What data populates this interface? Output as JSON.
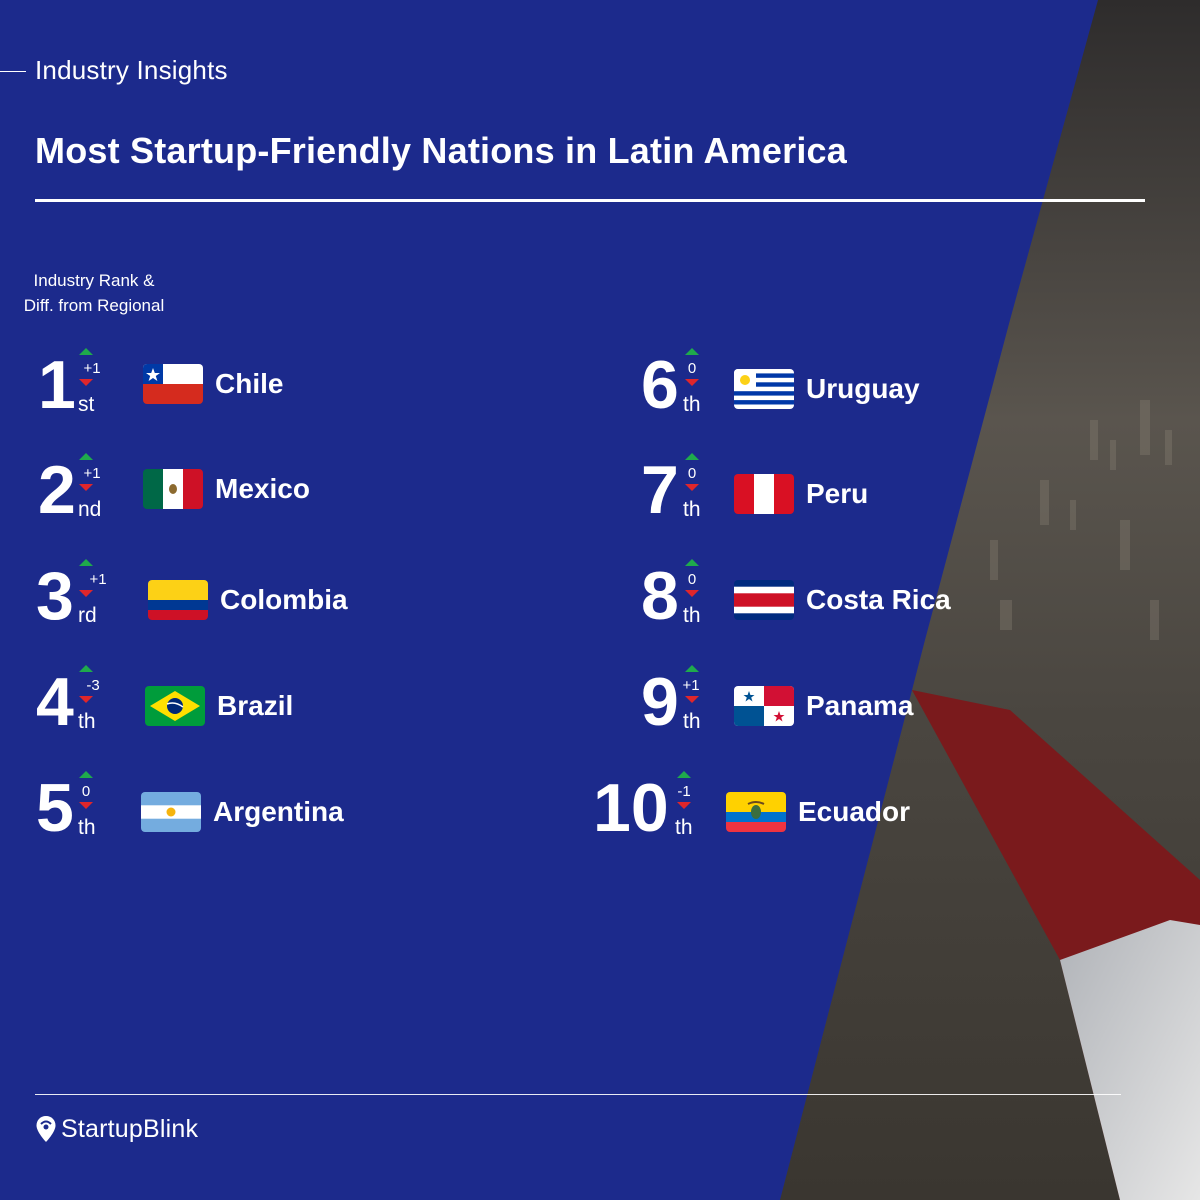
{
  "header": {
    "kicker": "Industry Insights",
    "title": "Most Startup-Friendly Nations in Latin America"
  },
  "legend": {
    "line1": "Industry Rank &",
    "line2": "Diff. from  Regional"
  },
  "colors": {
    "background": "#1c2a8c",
    "arrow_up": "#1faa4c",
    "arrow_down": "#e0262b"
  },
  "rankings": [
    {
      "rank": "1",
      "suffix": "st",
      "diff": "+1",
      "country": "Chile",
      "flag_icon": "chile-flag-icon"
    },
    {
      "rank": "2",
      "suffix": "nd",
      "diff": "+1",
      "country": "Mexico",
      "flag_icon": "mexico-flag-icon"
    },
    {
      "rank": "3",
      "suffix": "rd",
      "diff": "+1",
      "country": "Colombia",
      "flag_icon": "colombia-flag-icon"
    },
    {
      "rank": "4",
      "suffix": "th",
      "diff": "-3",
      "country": "Brazil",
      "flag_icon": "brazil-flag-icon"
    },
    {
      "rank": "5",
      "suffix": "th",
      "diff": "0",
      "country": "Argentina",
      "flag_icon": "argentina-flag-icon"
    },
    {
      "rank": "6",
      "suffix": "th",
      "diff": "0",
      "country": "Uruguay",
      "flag_icon": "uruguay-flag-icon"
    },
    {
      "rank": "7",
      "suffix": "th",
      "diff": "0",
      "country": "Peru",
      "flag_icon": "peru-flag-icon"
    },
    {
      "rank": "8",
      "suffix": "th",
      "diff": "0",
      "country": "Costa Rica",
      "flag_icon": "costa-rica-flag-icon"
    },
    {
      "rank": "9",
      "suffix": "th",
      "diff": "+1",
      "country": "Panama",
      "flag_icon": "panama-flag-icon"
    },
    {
      "rank": "10",
      "suffix": "th",
      "diff": "-1",
      "country": "Ecuador",
      "flag_icon": "ecuador-flag-icon"
    }
  ],
  "footer": {
    "brand": "StartupBlink",
    "logo_icon": "location-pin-icon"
  }
}
